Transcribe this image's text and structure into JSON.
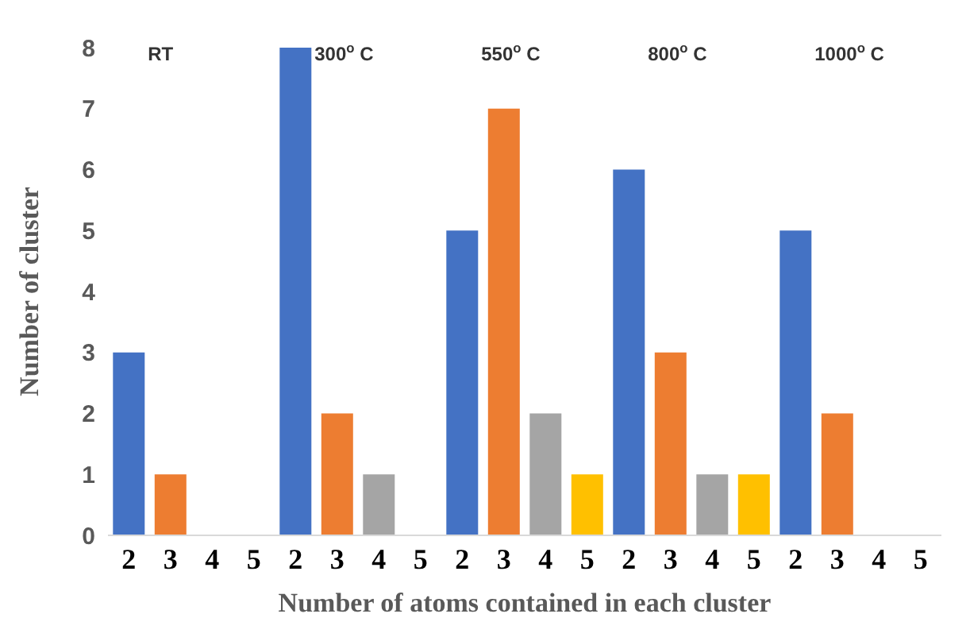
{
  "chart_data": {
    "type": "bar",
    "xlabel": "Number of atoms contained in each cluster",
    "ylabel": "Number of cluster",
    "categories": [
      "2",
      "3",
      "4",
      "5",
      "2",
      "3",
      "4",
      "5",
      "2",
      "3",
      "4",
      "5",
      "2",
      "3",
      "4",
      "5",
      "2",
      "3",
      "4",
      "5"
    ],
    "values": [
      3,
      1,
      0,
      0,
      8,
      2,
      1,
      0,
      5,
      7,
      2,
      1,
      6,
      3,
      1,
      1,
      5,
      2,
      0,
      0
    ],
    "colors": [
      "#4472c4",
      "#ed7d31",
      "#a5a5a5",
      "#ffc000",
      "#4472c4",
      "#ed7d31",
      "#a5a5a5",
      "#ffc000",
      "#4472c4",
      "#ed7d31",
      "#a5a5a5",
      "#ffc000",
      "#4472c4",
      "#ed7d31",
      "#a5a5a5",
      "#ffc000",
      "#4472c4",
      "#ed7d31",
      "#a5a5a5",
      "#ffc000"
    ],
    "annotations": [
      "RT",
      "300$^{o}$ C",
      "550$^{o}$ C",
      "800$^{o}$ C",
      "1000$^{o}$ C"
    ],
    "ylim": [
      0,
      8
    ],
    "yticks": [
      0,
      1,
      2,
      3,
      4,
      5,
      6,
      7,
      8
    ],
    "grid": false,
    "legend": false
  }
}
